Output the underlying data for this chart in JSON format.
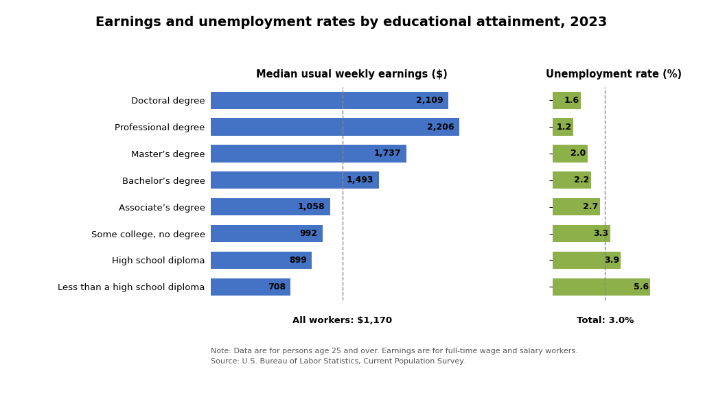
{
  "title": "Earnings and unemployment rates by educational attainment, 2023",
  "categories": [
    "Doctoral degree",
    "Professional degree",
    "Master’s degree",
    "Bachelor’s degree",
    "Associate’s degree",
    "Some college, no degree",
    "High school diploma",
    "Less than a high school diploma"
  ],
  "earnings": [
    2109,
    2206,
    1737,
    1493,
    1058,
    992,
    899,
    708
  ],
  "unemployment": [
    1.6,
    1.2,
    2.0,
    2.2,
    2.7,
    3.3,
    3.9,
    5.6
  ],
  "earnings_color": "#4472C4",
  "unemployment_color": "#8DB04A",
  "earnings_label": "Median usual weekly earnings ($)",
  "unemployment_label": "Unemployment rate (%)",
  "all_workers_line": 1170,
  "all_workers_text": "All workers: $1,170",
  "total_text": "Total: 3.0%",
  "total_line": 3.0,
  "note_line1": "Note: Data are for persons age 25 and over. Earnings are for full-time wage and salary workers.",
  "note_line2": "Source: U.S. Bureau of Labor Statistics, Current Population Survey.",
  "earnings_xlim": [
    0,
    2500
  ],
  "unemployment_xlim": [
    0,
    7
  ],
  "background_color": "#FFFFFF",
  "bar_height": 0.65
}
